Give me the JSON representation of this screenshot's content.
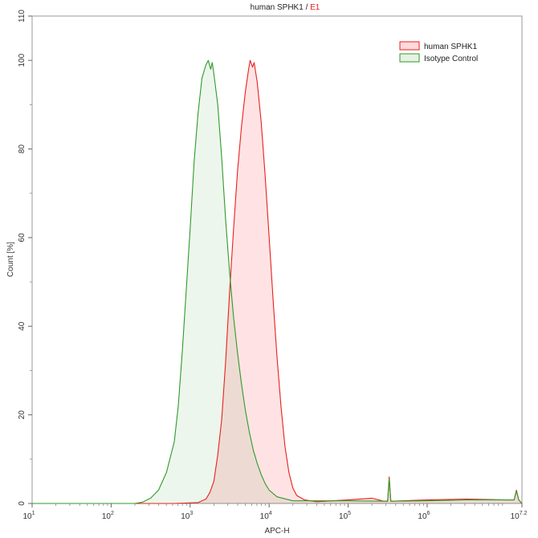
{
  "chart_data": {
    "type": "area",
    "title": "human SPHK1 / E1",
    "title_parts": {
      "main": "human SPHK1 / ",
      "highlight": "E1"
    },
    "title_highlight_color": "#e0201b",
    "xlabel": "APC-H",
    "ylabel": "Count [%]",
    "x_scale": "log10",
    "xlim": [
      1,
      7.2
    ],
    "ylim": [
      0,
      110
    ],
    "x_ticks": [
      {
        "value": 1,
        "base": "10",
        "exp": "1"
      },
      {
        "value": 2,
        "base": "10",
        "exp": "2"
      },
      {
        "value": 3,
        "base": "10",
        "exp": "3"
      },
      {
        "value": 4,
        "base": "10",
        "exp": "4"
      },
      {
        "value": 5,
        "base": "10",
        "exp": "5"
      },
      {
        "value": 6,
        "base": "10",
        "exp": "6"
      },
      {
        "value": 7.2,
        "base": "10",
        "exp": "7.2"
      }
    ],
    "y_ticks": [
      0,
      20,
      40,
      60,
      80,
      100,
      110
    ],
    "y_tick_labels": [
      "0",
      "20",
      "40",
      "60",
      "80",
      "100",
      "110"
    ],
    "legend_position": "top-right",
    "series": [
      {
        "name": "human SPHK1",
        "stroke": "#e8201c",
        "fill": "#ffd9db",
        "points": [
          [
            1.0,
            0
          ],
          [
            2.8,
            0
          ],
          [
            3.1,
            0.2
          ],
          [
            3.2,
            1.0
          ],
          [
            3.25,
            2.5
          ],
          [
            3.3,
            5
          ],
          [
            3.35,
            11
          ],
          [
            3.4,
            19
          ],
          [
            3.45,
            32
          ],
          [
            3.5,
            48
          ],
          [
            3.55,
            62
          ],
          [
            3.6,
            75
          ],
          [
            3.65,
            85
          ],
          [
            3.7,
            93
          ],
          [
            3.74,
            98
          ],
          [
            3.76,
            100
          ],
          [
            3.79,
            98.5
          ],
          [
            3.81,
            99.5
          ],
          [
            3.85,
            95
          ],
          [
            3.9,
            86
          ],
          [
            3.95,
            74
          ],
          [
            4.0,
            60
          ],
          [
            4.05,
            46
          ],
          [
            4.1,
            33
          ],
          [
            4.15,
            22
          ],
          [
            4.2,
            13
          ],
          [
            4.25,
            7
          ],
          [
            4.3,
            3.5
          ],
          [
            4.35,
            1.8
          ],
          [
            4.45,
            0.8
          ],
          [
            4.6,
            0.4
          ],
          [
            5.0,
            0.8
          ],
          [
            5.3,
            1.2
          ],
          [
            5.45,
            0.5
          ],
          [
            5.5,
            0.5
          ],
          [
            5.52,
            6.0
          ],
          [
            5.54,
            0.5
          ],
          [
            6.0,
            0.8
          ],
          [
            6.5,
            1.0
          ],
          [
            7.0,
            0.8
          ],
          [
            7.1,
            0.8
          ],
          [
            7.13,
            3.0
          ],
          [
            7.16,
            0.8
          ],
          [
            7.2,
            0
          ]
        ]
      },
      {
        "name": "Isotype Control",
        "stroke": "#2f9a2a",
        "fill": "#e6f2e4",
        "points": [
          [
            1.0,
            0
          ],
          [
            2.3,
            0
          ],
          [
            2.4,
            0.3
          ],
          [
            2.5,
            1.2
          ],
          [
            2.6,
            3.0
          ],
          [
            2.7,
            7
          ],
          [
            2.8,
            14
          ],
          [
            2.85,
            22
          ],
          [
            2.9,
            34
          ],
          [
            2.95,
            48
          ],
          [
            3.0,
            62
          ],
          [
            3.05,
            77
          ],
          [
            3.1,
            88
          ],
          [
            3.15,
            96
          ],
          [
            3.2,
            99
          ],
          [
            3.23,
            100
          ],
          [
            3.26,
            98
          ],
          [
            3.28,
            99.5
          ],
          [
            3.3,
            97
          ],
          [
            3.35,
            90
          ],
          [
            3.4,
            78
          ],
          [
            3.45,
            64
          ],
          [
            3.5,
            52
          ],
          [
            3.55,
            42
          ],
          [
            3.6,
            34
          ],
          [
            3.65,
            27
          ],
          [
            3.7,
            21
          ],
          [
            3.75,
            16
          ],
          [
            3.8,
            12
          ],
          [
            3.85,
            9
          ],
          [
            3.9,
            6.5
          ],
          [
            3.95,
            4.5
          ],
          [
            4.0,
            3.0
          ],
          [
            4.1,
            1.5
          ],
          [
            4.3,
            0.6
          ],
          [
            5.0,
            0.6
          ],
          [
            5.45,
            0.5
          ],
          [
            5.5,
            0.5
          ],
          [
            5.52,
            5.5
          ],
          [
            5.54,
            0.5
          ],
          [
            6.0,
            0.6
          ],
          [
            6.5,
            0.8
          ],
          [
            7.0,
            0.8
          ],
          [
            7.1,
            0.8
          ],
          [
            7.13,
            2.8
          ],
          [
            7.16,
            0.8
          ],
          [
            7.2,
            0
          ]
        ]
      }
    ]
  }
}
